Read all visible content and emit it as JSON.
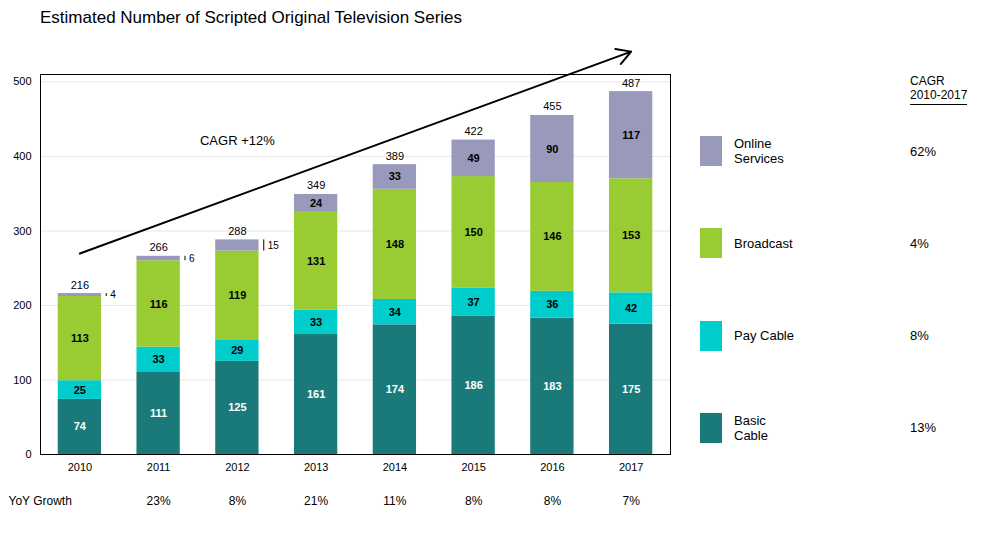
{
  "chart_data": {
    "type": "bar",
    "stacked": true,
    "title": "Estimated Number of Scripted Original Television Series",
    "categories": [
      "2010",
      "2011",
      "2012",
      "2013",
      "2014",
      "2015",
      "2016",
      "2017"
    ],
    "series": [
      {
        "name": "Basic\nCable",
        "color": "#1a7a7a",
        "values": [
          74,
          111,
          125,
          161,
          174,
          186,
          183,
          175
        ],
        "cagr": 13,
        "cagr_label": "13%"
      },
      {
        "name": "Pay Cable",
        "color": "#00cccc",
        "values": [
          25,
          33,
          29,
          33,
          34,
          37,
          36,
          42
        ],
        "cagr": 8,
        "cagr_label": "8%"
      },
      {
        "name": "Broadcast",
        "color": "#99cc33",
        "values": [
          113,
          116,
          119,
          131,
          148,
          150,
          146,
          153
        ],
        "cagr": 4,
        "cagr_label": "4%"
      },
      {
        "name": "Online\nServices",
        "color": "#9999bb",
        "values": [
          4,
          6,
          15,
          24,
          33,
          49,
          90,
          117
        ],
        "cagr": 62,
        "cagr_label": "62%"
      }
    ],
    "totals": [
      216,
      266,
      288,
      349,
      389,
      422,
      455,
      487
    ],
    "ylim": [
      0,
      510
    ],
    "yticks": [
      0,
      100,
      200,
      300,
      400,
      500
    ],
    "grid": true,
    "data_labels": true,
    "legend": "right",
    "annotations": [
      "CAGR +12%"
    ],
    "yoy_growth": {
      "label": "YoY Growth",
      "values": [
        null,
        23,
        8,
        21,
        11,
        8,
        8,
        7
      ],
      "value_labels": [
        null,
        "23%",
        "8%",
        "21%",
        "11%",
        "8%",
        "8%",
        "7%"
      ]
    },
    "cagr_title": "CAGR\n2010-2017"
  }
}
